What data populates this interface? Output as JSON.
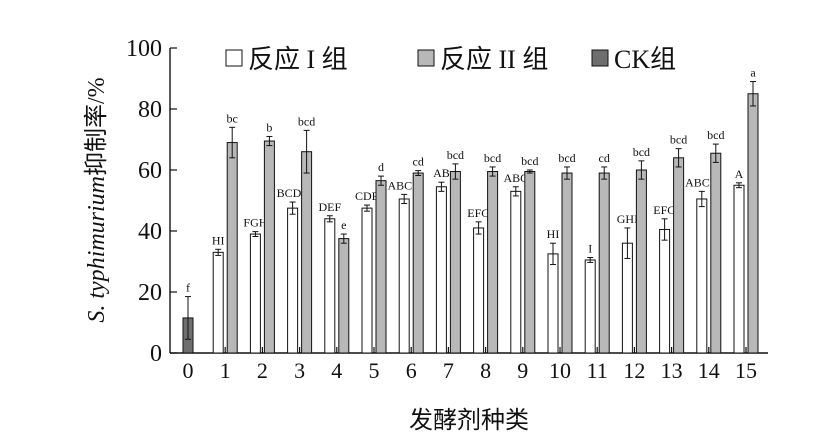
{
  "chart_data": {
    "type": "bar",
    "title": "",
    "xlabel": "发酵剂种类",
    "ylabel_italic": "S. typhimurium",
    "ylabel_rest": "抑制率/%",
    "ylim": [
      0,
      100
    ],
    "yticks": [
      0,
      20,
      40,
      60,
      80,
      100
    ],
    "grid": false,
    "legend_position": "top",
    "categories": [
      "0",
      "1",
      "2",
      "3",
      "4",
      "5",
      "6",
      "7",
      "8",
      "9",
      "10",
      "11",
      "12",
      "13",
      "14",
      "15"
    ],
    "series": [
      {
        "name": "反应 I 组",
        "color": "#ffffff",
        "values": [
          null,
          33,
          39,
          47.5,
          44,
          47.5,
          50.5,
          54.5,
          41,
          53,
          32.5,
          30.5,
          36,
          40.5,
          50.5,
          55
        ],
        "errors": [
          null,
          1,
          0.8,
          2,
          1,
          1,
          1.5,
          1.5,
          2,
          1.5,
          3.5,
          0.8,
          5,
          3.5,
          2.5,
          0.8
        ],
        "labels": [
          "",
          "HI",
          "FGH",
          "BCDE",
          "DEF",
          "CDE",
          "ABCD",
          "AB",
          "EFG",
          "ABC",
          "HI",
          "I",
          "GHI",
          "EFG",
          "ABCD",
          "A"
        ]
      },
      {
        "name": "反应 II 组",
        "color": "#b8b8b8",
        "values": [
          null,
          69,
          69.5,
          66,
          37.5,
          56.5,
          59,
          59.5,
          59.5,
          59.5,
          59,
          59,
          60,
          64,
          65.5,
          85
        ],
        "errors": [
          null,
          5,
          1.5,
          7,
          1.5,
          1.5,
          0.8,
          2.5,
          1.5,
          0.5,
          2,
          2,
          3,
          3,
          3,
          4
        ],
        "labels": [
          "",
          "bc",
          "b",
          "bcd",
          "e",
          "d",
          "cd",
          "bcd",
          "bcd",
          "bcd",
          "bcd",
          "cd",
          "bcd",
          "bcd",
          "bcd",
          "a"
        ]
      },
      {
        "name": "CK组",
        "color": "#6e6e6e",
        "values": [
          11.5,
          null,
          null,
          null,
          null,
          null,
          null,
          null,
          null,
          null,
          null,
          null,
          null,
          null,
          null,
          null
        ],
        "errors": [
          7,
          null,
          null,
          null,
          null,
          null,
          null,
          null,
          null,
          null,
          null,
          null,
          null,
          null,
          null,
          null
        ],
        "labels": [
          "f",
          "",
          "",
          "",
          "",
          "",
          "",
          "",
          "",
          "",
          "",
          "",
          "",
          "",
          "",
          ""
        ]
      }
    ]
  }
}
